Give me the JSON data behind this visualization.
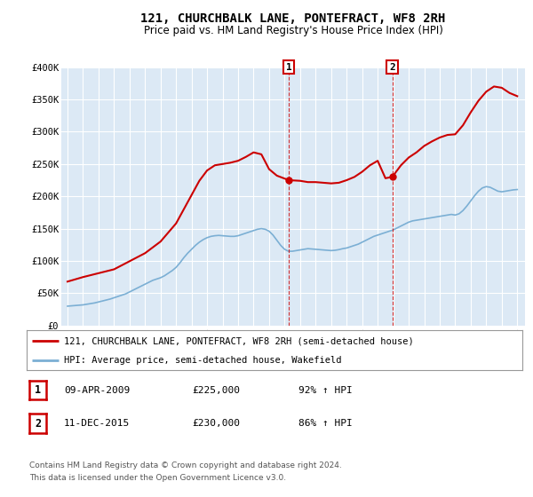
{
  "title": "121, CHURCHBALK LANE, PONTEFRACT, WF8 2RH",
  "subtitle": "Price paid vs. HM Land Registry's House Price Index (HPI)",
  "background_color": "#ffffff",
  "plot_bg_color": "#dce9f5",
  "grid_color": "#ffffff",
  "red_color": "#cc0000",
  "blue_color": "#7bafd4",
  "ylim": [
    0,
    400000
  ],
  "yticks": [
    0,
    50000,
    100000,
    150000,
    200000,
    250000,
    300000,
    350000,
    400000
  ],
  "ytick_labels": [
    "£0",
    "£50K",
    "£100K",
    "£150K",
    "£200K",
    "£250K",
    "£300K",
    "£350K",
    "£400K"
  ],
  "transactions": [
    {
      "date_str": "09-APR-2009",
      "date_num": 2009.27,
      "price": 225000,
      "label": "1"
    },
    {
      "date_str": "11-DEC-2015",
      "date_num": 2015.94,
      "price": 230000,
      "label": "2"
    }
  ],
  "transaction1_pct": "92% ↑ HPI",
  "transaction2_pct": "86% ↑ HPI",
  "legend_line1": "121, CHURCHBALK LANE, PONTEFRACT, WF8 2RH (semi-detached house)",
  "legend_line2": "HPI: Average price, semi-detached house, Wakefield",
  "footer1": "Contains HM Land Registry data © Crown copyright and database right 2024.",
  "footer2": "This data is licensed under the Open Government Licence v3.0.",
  "hpi_years": [
    1995.0,
    1995.25,
    1995.5,
    1995.75,
    1996.0,
    1996.25,
    1996.5,
    1996.75,
    1997.0,
    1997.25,
    1997.5,
    1997.75,
    1998.0,
    1998.25,
    1998.5,
    1998.75,
    1999.0,
    1999.25,
    1999.5,
    1999.75,
    2000.0,
    2000.25,
    2000.5,
    2000.75,
    2001.0,
    2001.25,
    2001.5,
    2001.75,
    2002.0,
    2002.25,
    2002.5,
    2002.75,
    2003.0,
    2003.25,
    2003.5,
    2003.75,
    2004.0,
    2004.25,
    2004.5,
    2004.75,
    2005.0,
    2005.25,
    2005.5,
    2005.75,
    2006.0,
    2006.25,
    2006.5,
    2006.75,
    2007.0,
    2007.25,
    2007.5,
    2007.75,
    2008.0,
    2008.25,
    2008.5,
    2008.75,
    2009.0,
    2009.25,
    2009.5,
    2009.75,
    2010.0,
    2010.25,
    2010.5,
    2010.75,
    2011.0,
    2011.25,
    2011.5,
    2011.75,
    2012.0,
    2012.25,
    2012.5,
    2012.75,
    2013.0,
    2013.25,
    2013.5,
    2013.75,
    2014.0,
    2014.25,
    2014.5,
    2014.75,
    2015.0,
    2015.25,
    2015.5,
    2015.75,
    2016.0,
    2016.25,
    2016.5,
    2016.75,
    2017.0,
    2017.25,
    2017.5,
    2017.75,
    2018.0,
    2018.25,
    2018.5,
    2018.75,
    2019.0,
    2019.25,
    2019.5,
    2019.75,
    2020.0,
    2020.25,
    2020.5,
    2020.75,
    2021.0,
    2021.25,
    2021.5,
    2021.75,
    2022.0,
    2022.25,
    2022.5,
    2022.75,
    2023.0,
    2023.25,
    2023.5,
    2023.75,
    2024.0
  ],
  "hpi_values": [
    30000,
    30500,
    31000,
    31500,
    32000,
    33000,
    34000,
    35000,
    36500,
    38000,
    39500,
    41000,
    43000,
    45000,
    47000,
    49000,
    52000,
    55000,
    58000,
    61000,
    64000,
    67000,
    70000,
    72000,
    74000,
    77000,
    81000,
    85000,
    90000,
    97000,
    105000,
    112000,
    118000,
    124000,
    129000,
    133000,
    136000,
    138000,
    139000,
    139500,
    139000,
    138500,
    138000,
    138000,
    139000,
    141000,
    143000,
    145000,
    147000,
    149000,
    150000,
    149000,
    146000,
    140000,
    132000,
    124000,
    118000,
    115000,
    115000,
    116000,
    117000,
    118000,
    119000,
    118500,
    118000,
    117500,
    117000,
    116500,
    116000,
    116500,
    117500,
    119000,
    120000,
    122000,
    124000,
    126000,
    129000,
    132000,
    135000,
    138000,
    140000,
    142000,
    144000,
    146000,
    148000,
    151000,
    154000,
    157000,
    160000,
    162000,
    163000,
    164000,
    165000,
    166000,
    167000,
    168000,
    169000,
    170000,
    171000,
    172000,
    171000,
    173000,
    178000,
    185000,
    193000,
    201000,
    208000,
    213000,
    215000,
    214000,
    211000,
    208000,
    207000,
    208000,
    209000,
    210000,
    210500
  ],
  "red_years": [
    1995.0,
    1996.0,
    1998.0,
    2000.0,
    2001.0,
    2002.0,
    2003.0,
    2003.5,
    2004.0,
    2004.5,
    2005.0,
    2005.5,
    2006.0,
    2006.5,
    2007.0,
    2007.5,
    2008.0,
    2008.5,
    2009.27,
    2010.0,
    2010.5,
    2011.0,
    2011.5,
    2012.0,
    2012.5,
    2013.0,
    2013.5,
    2014.0,
    2014.5,
    2015.0,
    2015.5,
    2015.94,
    2016.5,
    2017.0,
    2017.5,
    2018.0,
    2018.5,
    2019.0,
    2019.5,
    2020.0,
    2020.5,
    2021.0,
    2021.5,
    2022.0,
    2022.5,
    2023.0,
    2023.5,
    2024.0
  ],
  "red_values": [
    68000,
    75000,
    87000,
    112000,
    130000,
    158000,
    202000,
    224000,
    240000,
    248000,
    250000,
    252000,
    255000,
    261000,
    268000,
    265000,
    242000,
    232000,
    225000,
    224000,
    222000,
    222000,
    221000,
    220000,
    221000,
    225000,
    230000,
    238000,
    248000,
    255000,
    228000,
    230000,
    248000,
    260000,
    268000,
    278000,
    285000,
    291000,
    295000,
    296000,
    310000,
    330000,
    348000,
    362000,
    370000,
    368000,
    360000,
    355000
  ]
}
